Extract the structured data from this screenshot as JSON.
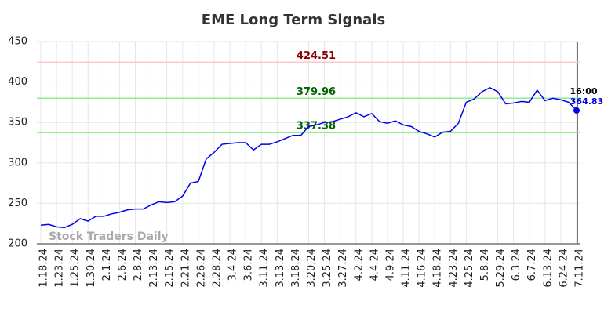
{
  "chart_data": {
    "type": "line",
    "title": "EME Long Term Signals",
    "watermark": "Stock Traders Daily",
    "categories": [
      "1.18.24",
      null,
      "1.23.24",
      null,
      "1.25.24",
      null,
      "1.30.24",
      null,
      "2.1.24",
      null,
      "2.6.24",
      null,
      "2.8.24",
      null,
      "2.13.24",
      null,
      "2.15.24",
      null,
      "2.21.24",
      null,
      "2.26.24",
      null,
      "2.28.24",
      null,
      "3.4.24",
      null,
      "3.6.24",
      null,
      "3.11.24",
      null,
      "3.13.24",
      null,
      "3.18.24",
      null,
      "3.20.24",
      null,
      "3.25.24",
      null,
      "3.27.24",
      null,
      "4.2.24",
      null,
      "4.4.24",
      null,
      "4.9.24",
      null,
      "4.11.24",
      null,
      "4.16.24",
      null,
      "4.18.24",
      null,
      "4.23.24",
      null,
      "4.25.24",
      null,
      "5.8.24",
      null,
      "5.29.24",
      null,
      "6.3.24",
      null,
      "6.7.24",
      null,
      "6.13.24",
      null,
      "6.24.24",
      null,
      "7.11.24"
    ],
    "series": [
      {
        "name": "EME",
        "color": "#0000ee",
        "values": [
          223,
          224,
          221,
          220,
          224,
          231,
          228,
          234,
          234,
          237,
          239,
          242,
          243,
          243,
          248,
          252,
          251,
          252,
          259,
          275,
          277,
          305,
          313,
          323,
          324,
          325,
          325,
          316,
          323,
          323,
          326,
          330,
          334,
          334,
          345,
          347,
          350,
          351,
          354,
          357,
          362,
          357,
          361,
          351,
          349,
          352,
          347,
          345,
          339,
          336,
          332,
          338,
          339,
          349,
          375,
          379,
          388,
          393,
          388,
          373,
          374,
          376,
          375,
          390,
          377,
          380,
          378,
          375,
          364.83
        ]
      }
    ],
    "last_time": "16:00",
    "signal_lines": [
      {
        "value": 424.51,
        "color": "#ffc8c8",
        "label_color": "#8b0000"
      },
      {
        "value": 379.96,
        "color": "#90ee90",
        "label_color": "#006400"
      },
      {
        "value": 337.38,
        "color": "#90ee90",
        "label_color": "#006400"
      }
    ],
    "ylim": [
      200,
      450
    ],
    "yticks": [
      200,
      250,
      300,
      350,
      400,
      450
    ],
    "grid": true
  }
}
